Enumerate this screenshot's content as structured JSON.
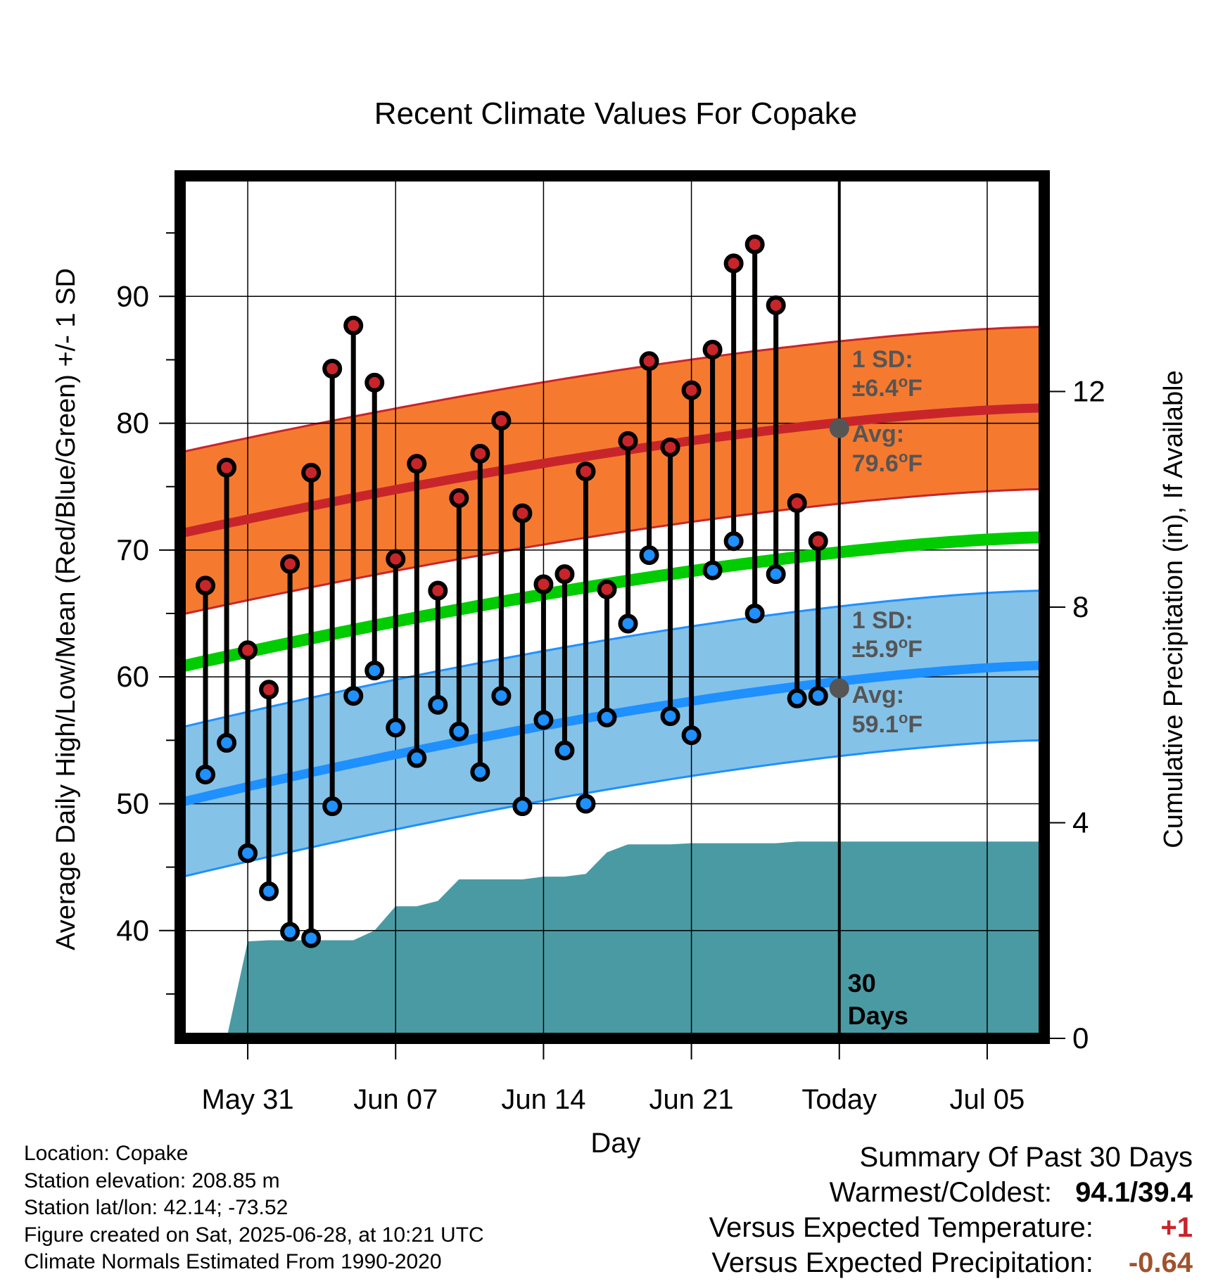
{
  "chart_data": {
    "type": "line",
    "title": "Recent Climate Values For Copake",
    "xlabel": "Day",
    "ylabel": "Average Daily High/Low/Mean (Red/Blue/Green) +/- 1 SD",
    "y2label": "Cumulative Precipitation (in), If Available",
    "x_tick_labels": [
      "May 31",
      "Jun 07",
      "Jun 14",
      "Jun 21",
      "Today",
      "Jul 05"
    ],
    "x_tick_days": [
      2,
      9,
      16,
      23,
      30,
      37
    ],
    "xlim": [
      -1.2,
      39.7
    ],
    "ylim": [
      31.5,
      99.5
    ],
    "y_ticks": [
      40,
      50,
      60,
      70,
      80,
      90
    ],
    "y2lim": [
      0,
      16
    ],
    "y2_ticks": [
      0,
      4,
      8,
      12
    ],
    "today_day": 30,
    "today_label": "30 Days",
    "grid": true,
    "colors": {
      "high": "#c8252b",
      "low": "#1e90ff",
      "mean": "#00cc00",
      "high_band": "#f57a30",
      "low_band": "#85c2e8",
      "precip": "#4a9aa3",
      "annotation": "#555555"
    },
    "days": [
      -1,
      0,
      1,
      2,
      3,
      4,
      5,
      6,
      7,
      8,
      9,
      10,
      11,
      12,
      13,
      14,
      15,
      16,
      17,
      18,
      19,
      20,
      21,
      22,
      23,
      24,
      25,
      26,
      27,
      28,
      29
    ],
    "daily_high": [
      null,
      67.2,
      76.5,
      62.1,
      59.0,
      68.9,
      76.1,
      84.3,
      87.7,
      83.2,
      69.3,
      76.8,
      66.8,
      74.1,
      77.6,
      80.2,
      72.9,
      67.3,
      68.1,
      76.2,
      66.9,
      78.6,
      84.9,
      78.1,
      82.6,
      85.8,
      92.6,
      94.1,
      89.3,
      73.7,
      70.7
    ],
    "daily_low": [
      null,
      52.3,
      54.8,
      46.1,
      43.1,
      39.9,
      39.4,
      49.8,
      58.5,
      60.5,
      56.0,
      53.6,
      57.8,
      55.7,
      52.5,
      58.5,
      49.8,
      56.6,
      54.2,
      50.0,
      56.8,
      64.2,
      69.6,
      56.9,
      55.4,
      68.4,
      70.7,
      65.0,
      68.1,
      58.3,
      58.5
    ],
    "normal_high": {
      "start": 71.3,
      "end": 81.2,
      "sd": 6.4,
      "today_avg": 79.6
    },
    "normal_low": {
      "start": 50.1,
      "end": 60.9,
      "sd": 5.9,
      "today_avg": 59.1
    },
    "normal_mean": {
      "start": 60.8,
      "end": 71.0
    },
    "precip_cum": [
      [
        -1,
        0
      ],
      [
        0,
        0
      ],
      [
        1,
        0
      ],
      [
        2,
        1.8
      ],
      [
        3,
        1.82
      ],
      [
        4,
        1.82
      ],
      [
        5,
        1.82
      ],
      [
        6,
        1.82
      ],
      [
        7,
        1.82
      ],
      [
        8,
        2.0
      ],
      [
        9,
        2.45
      ],
      [
        10,
        2.45
      ],
      [
        11,
        2.55
      ],
      [
        12,
        2.95
      ],
      [
        13,
        2.95
      ],
      [
        14,
        2.95
      ],
      [
        15,
        2.95
      ],
      [
        16,
        3.0
      ],
      [
        17,
        3.0
      ],
      [
        18,
        3.05
      ],
      [
        19,
        3.45
      ],
      [
        20,
        3.6
      ],
      [
        21,
        3.6
      ],
      [
        22,
        3.6
      ],
      [
        23,
        3.62
      ],
      [
        24,
        3.62
      ],
      [
        25,
        3.62
      ],
      [
        26,
        3.62
      ],
      [
        27,
        3.62
      ],
      [
        28,
        3.65
      ],
      [
        29,
        3.65
      ],
      [
        30,
        3.65
      ],
      [
        39.7,
        3.65
      ]
    ],
    "annotations": {
      "high_sd_label": "1 SD:",
      "high_sd_value": "±6.4",
      "high_avg_label": "Avg:",
      "high_avg_value": "79.6",
      "low_sd_label": "1 SD:",
      "low_sd_value": "±5.9",
      "low_avg_label": "Avg:",
      "low_avg_value": "59.1",
      "degree_symbol": "o",
      "unit": "F"
    }
  },
  "info": {
    "location": "Location: Copake",
    "elevation": "Station elevation: 208.85 m",
    "latlon": "Station lat/lon: 42.14; -73.52",
    "created": "Figure created on Sat, 2025-06-28, at 10:21 UTC",
    "normals": "Climate Normals Estimated From 1990-2020"
  },
  "summary": {
    "title": "Summary Of Past 30 Days",
    "warmest_label": "Warmest/Coldest:",
    "warmest_value": "94.1/39.4",
    "temp_label": "Versus Expected Temperature:",
    "temp_value": "+1",
    "temp_color": "#c8252b",
    "precip_label": "Versus Expected Precipitation:",
    "precip_value": "-0.64",
    "precip_color": "#a0522d"
  }
}
